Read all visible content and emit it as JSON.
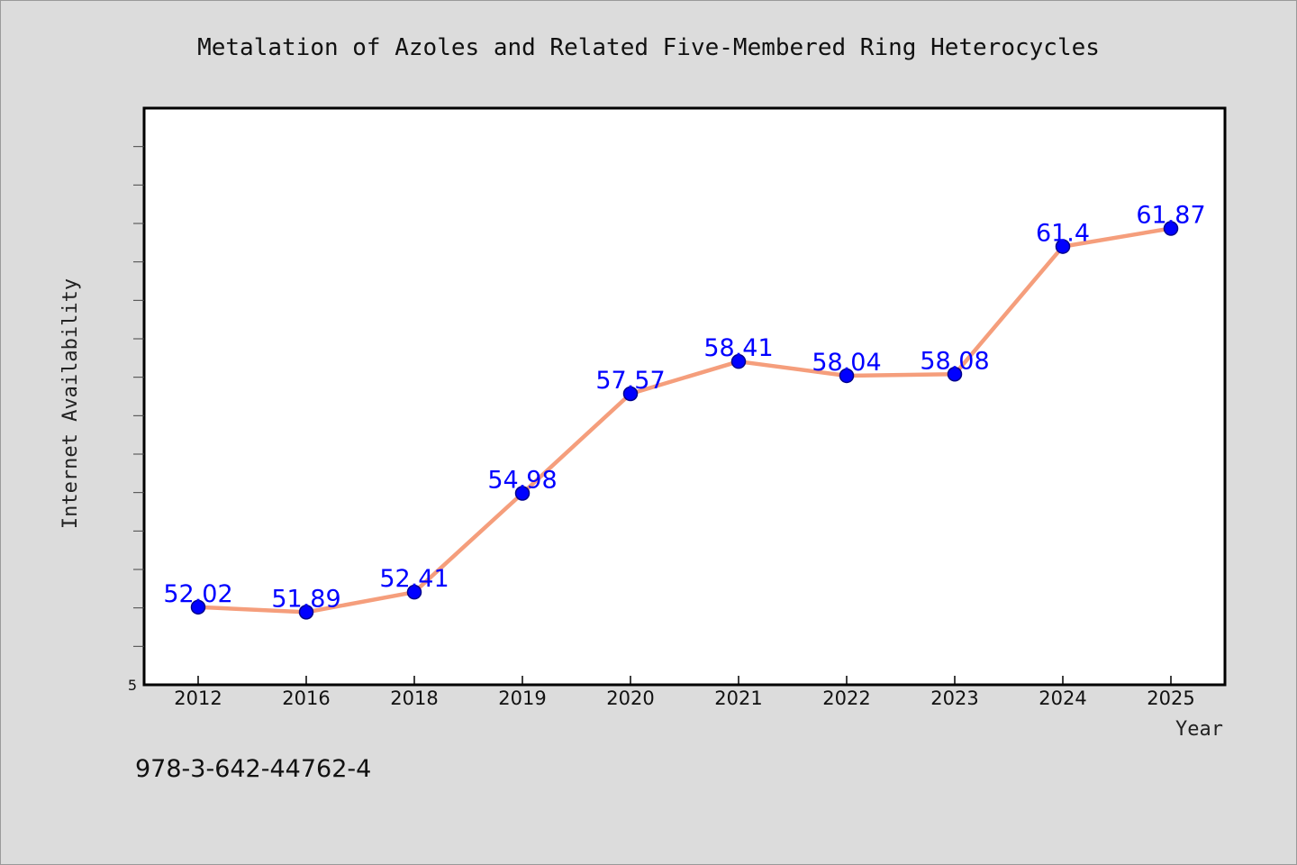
{
  "chart_data": {
    "type": "line",
    "title": "Metalation of Azoles and Related Five-Membered Ring Heterocycles",
    "xlabel": "Year",
    "ylabel": "Internet Availability",
    "categories": [
      "2012",
      "2016",
      "2018",
      "2019",
      "2020",
      "2021",
      "2022",
      "2023",
      "2024",
      "2025"
    ],
    "values": [
      52.02,
      51.89,
      52.41,
      54.98,
      57.57,
      58.41,
      58.04,
      58.08,
      61.4,
      61.87
    ],
    "data_labels": [
      "52.02",
      "51.89",
      "52.41",
      "54.98",
      "57.57",
      "58.41",
      "58.04",
      "58.08",
      "61.4",
      "61.87"
    ],
    "ylim": [
      50,
      65
    ],
    "ytick_labels": [
      "5"
    ],
    "grid": false,
    "legend": "none",
    "colors": {
      "line": "#f59e7c",
      "marker": "#0000ff",
      "marker_edge": "#00008b",
      "data_label": "#0000ff",
      "background": "#dcdcdc",
      "plot_background": "#ffffff"
    }
  },
  "footer": {
    "isbn": "978-3-642-44762-4"
  }
}
